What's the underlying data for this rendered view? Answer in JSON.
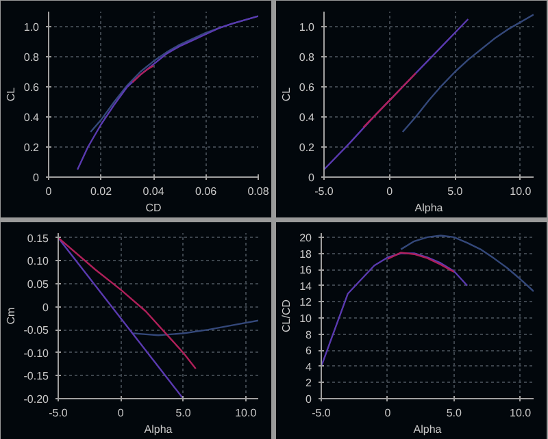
{
  "chart_data": [
    {
      "type": "line",
      "xlabel": "CD",
      "ylabel": "CL",
      "xlim": [
        0,
        0.08
      ],
      "ylim": [
        0,
        1.1
      ],
      "grid": true,
      "xticks": [
        {
          "value": 0,
          "label": "0"
        },
        0.02,
        0.04,
        0.06,
        0.08
      ],
      "yticks": [
        {
          "value": 0,
          "label": "0"
        },
        0.2,
        0.4,
        0.6,
        0.8,
        {
          "value": 1.0,
          "label": "1.0"
        }
      ],
      "series": [
        {
          "color": "#34487a",
          "x": [
            0.016,
            0.02,
            0.025,
            0.03,
            0.035,
            0.04,
            0.045,
            0.05,
            0.055,
            0.06,
            0.065,
            0.07,
            0.08
          ],
          "values": [
            0.3,
            0.38,
            0.5,
            0.61,
            0.7,
            0.77,
            0.83,
            0.88,
            0.92,
            0.96,
            0.99,
            1.02,
            1.07
          ]
        },
        {
          "color": "#5a3ab0",
          "x": [
            0.011,
            0.015,
            0.02,
            0.025,
            0.03,
            0.035,
            0.04,
            0.045,
            0.05,
            0.055,
            0.06,
            0.065,
            0.07,
            0.08
          ],
          "values": [
            0.05,
            0.2,
            0.35,
            0.48,
            0.6,
            0.68,
            0.75,
            0.82,
            0.87,
            0.91,
            0.95,
            0.99,
            1.02,
            1.07
          ]
        },
        {
          "color": "#b0205a",
          "x": [
            0.032,
            0.035,
            0.038,
            0.04
          ],
          "values": [
            0.63,
            0.68,
            0.72,
            0.74
          ]
        }
      ]
    },
    {
      "type": "line",
      "xlabel": "Alpha",
      "ylabel": "CL",
      "xlim": [
        -5,
        11
      ],
      "ylim": [
        0,
        1.1
      ],
      "grid": true,
      "xticks": [
        {
          "value": -5,
          "label": "-5.0"
        },
        0,
        {
          "value": 5,
          "label": "5.0"
        },
        {
          "value": 10,
          "label": "10.0"
        }
      ],
      "yticks": [
        {
          "value": 0,
          "label": "0"
        },
        0.2,
        0.4,
        0.6,
        0.8,
        {
          "value": 1.0,
          "label": "1.0"
        }
      ],
      "series": [
        {
          "color": "#34487a",
          "x": [
            1,
            2,
            3,
            4,
            5,
            6,
            7,
            8,
            9,
            10,
            11
          ],
          "values": [
            0.3,
            0.4,
            0.51,
            0.61,
            0.7,
            0.78,
            0.85,
            0.92,
            0.98,
            1.03,
            1.08
          ]
        },
        {
          "color": "#5a3ab0",
          "x": [
            -5,
            -3,
            -1,
            0,
            2,
            4,
            6
          ],
          "values": [
            0.05,
            0.23,
            0.42,
            0.51,
            0.69,
            0.87,
            1.05
          ]
        },
        {
          "color": "#b0205a",
          "x": [
            -2,
            -1,
            0,
            1,
            2
          ],
          "values": [
            0.33,
            0.42,
            0.51,
            0.6,
            0.69
          ]
        }
      ]
    },
    {
      "type": "line",
      "xlabel": "Alpha",
      "ylabel": "Cm",
      "xlim": [
        -5,
        11
      ],
      "ylim": [
        -0.2,
        0.16
      ],
      "grid": true,
      "xticks": [
        {
          "value": -5,
          "label": "-5.0"
        },
        0,
        {
          "value": 5,
          "label": "5.0"
        },
        {
          "value": 10,
          "label": "10.0"
        }
      ],
      "yticks": [
        {
          "value": -0.2,
          "label": "-0.20"
        },
        {
          "value": -0.15,
          "label": "-0.15"
        },
        {
          "value": -0.1,
          "label": "-0.10"
        },
        {
          "value": -0.05,
          "label": "-0.05"
        },
        {
          "value": 0,
          "label": "0"
        },
        {
          "value": 0.05,
          "label": "0.05"
        },
        {
          "value": 0.1,
          "label": "0.10"
        },
        {
          "value": 0.15,
          "label": "0.15"
        }
      ],
      "series": [
        {
          "color": "#34487a",
          "x": [
            1,
            2,
            3,
            5,
            7,
            9,
            11
          ],
          "values": [
            -0.058,
            -0.06,
            -0.062,
            -0.058,
            -0.05,
            -0.04,
            -0.03
          ]
        },
        {
          "color": "#5a3ab0",
          "x": [
            -5,
            5
          ],
          "values": [
            0.15,
            -0.2
          ]
        },
        {
          "color": "#b0205a",
          "x": [
            -5,
            -2,
            0,
            2,
            4,
            5,
            6
          ],
          "values": [
            0.15,
            0.08,
            0.037,
            -0.01,
            -0.07,
            -0.1,
            -0.135
          ]
        }
      ]
    },
    {
      "type": "line",
      "xlabel": "Alpha",
      "ylabel": "CL/CD",
      "xlim": [
        -5,
        11
      ],
      "ylim": [
        0,
        20.5
      ],
      "grid": true,
      "xticks": [
        {
          "value": -5,
          "label": "-5.0"
        },
        0,
        {
          "value": 5,
          "label": "5.0"
        },
        {
          "value": 10,
          "label": "10.0"
        }
      ],
      "yticks": [
        0,
        2,
        4,
        6,
        8,
        10,
        12,
        14,
        16,
        18,
        20
      ],
      "series": [
        {
          "color": "#34487a",
          "x": [
            1,
            2,
            3,
            4,
            5,
            6,
            7,
            8,
            9,
            10,
            11
          ],
          "values": [
            18.5,
            19.5,
            20,
            20.2,
            20,
            19.3,
            18.5,
            17.4,
            16.2,
            14.8,
            13.3
          ]
        },
        {
          "color": "#5a3ab0",
          "x": [
            -5,
            -3,
            -1,
            0,
            1,
            2,
            3,
            4,
            5,
            6
          ],
          "values": [
            4,
            13,
            16.5,
            17.5,
            18,
            18,
            17.5,
            16.8,
            15.8,
            14
          ]
        },
        {
          "color": "#b0205a",
          "x": [
            0,
            1,
            2,
            3,
            4,
            5
          ],
          "values": [
            17.3,
            18.1,
            17.9,
            17.4,
            16.6,
            15.7
          ]
        }
      ]
    }
  ]
}
